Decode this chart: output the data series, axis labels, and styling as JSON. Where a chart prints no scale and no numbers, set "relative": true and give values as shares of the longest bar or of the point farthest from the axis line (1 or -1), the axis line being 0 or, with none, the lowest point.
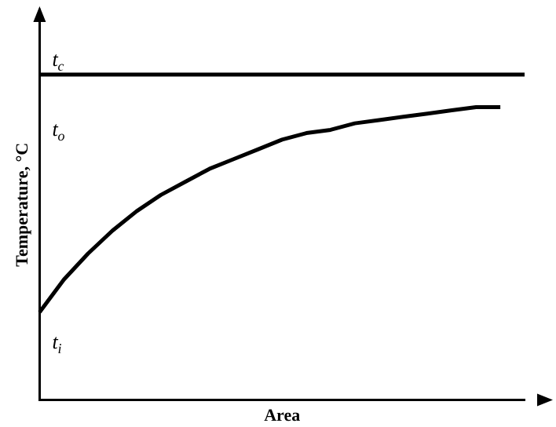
{
  "chart_data": {
    "type": "line",
    "relative": true,
    "xlabel": "Area",
    "ylabel": "Temperature, °C",
    "categories": [
      null,
      null,
      null,
      null,
      null,
      null,
      null,
      null,
      null,
      null,
      null,
      null,
      null,
      null,
      null,
      null,
      null,
      null,
      null,
      null,
      null
    ],
    "series": [
      {
        "color": "#000000",
        "values": [
          1,
          1,
          1,
          1,
          1,
          1,
          1,
          1,
          1,
          1,
          1,
          1,
          1,
          1,
          1,
          1,
          1,
          1,
          1,
          1,
          1
        ]
      },
      {
        "color": "#000000",
        "values": [
          0.27,
          0.37,
          0.45,
          0.52,
          0.58,
          0.63,
          0.67,
          0.71,
          0.74,
          0.77,
          0.8,
          0.82,
          0.83,
          0.85,
          0.86,
          0.87,
          0.88,
          0.89,
          0.9,
          0.9,
          null
        ]
      }
    ],
    "annotations": [
      {
        "text": "t$_{c}$",
        "y": 1
      },
      "t$_{o}$",
      "t$_{i}$"
    ],
    "grid": false,
    "legend": false,
    "marker": "none",
    "line_style": "solid"
  }
}
